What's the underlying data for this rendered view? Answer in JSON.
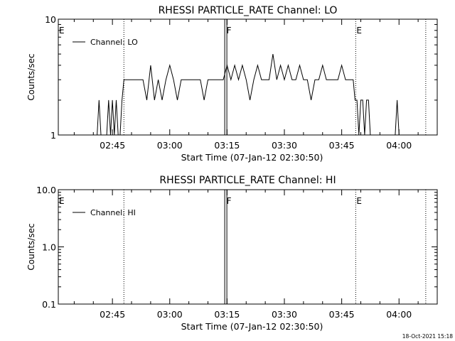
{
  "footer": {
    "date_stamp": "18-Oct-2021 15:18"
  },
  "chart_data": [
    {
      "type": "line",
      "title": "RHESSI PARTICLE_RATE Channel: LO",
      "xlabel": "Start Time (07-Jan-12 02:30:50)",
      "ylabel": "Counts/sec",
      "yscale": "log",
      "ylim": [
        1,
        10
      ],
      "ytick_labels": [
        "1",
        "10"
      ],
      "xlim": [
        "02:30:50",
        "04:10:00"
      ],
      "xtick_labels": [
        "02:45",
        "03:00",
        "03:15",
        "03:30",
        "03:45",
        "04:00"
      ],
      "legend": {
        "entries": [
          "Channel: LO"
        ],
        "placement": "top-left"
      },
      "markers": [
        {
          "label": "E",
          "time": "02:30:50",
          "style": "none"
        },
        {
          "label": "",
          "time": "02:48:00",
          "style": "dotted"
        },
        {
          "label": "F",
          "time": "03:14:40",
          "style": "double-solid"
        },
        {
          "label": "E",
          "time": "03:48:40",
          "style": "dotted"
        },
        {
          "label": "",
          "time": "04:07:00",
          "style": "dotted"
        }
      ],
      "series": [
        {
          "name": "Channel: LO",
          "x": [
            "02:41:00",
            "02:41:30",
            "02:42:00",
            "02:43:30",
            "02:44:00",
            "02:44:30",
            "02:45:00",
            "02:45:30",
            "02:46:00",
            "02:46:30",
            "02:47:00",
            "02:47:30",
            "02:48:00",
            "02:49:00",
            "02:50:00",
            "02:51:00",
            "02:52:00",
            "02:53:00",
            "02:54:00",
            "02:55:00",
            "02:56:00",
            "02:57:00",
            "02:58:00",
            "02:59:00",
            "03:00:00",
            "03:01:00",
            "03:02:00",
            "03:03:00",
            "03:04:00",
            "03:05:00",
            "03:06:00",
            "03:07:00",
            "03:08:00",
            "03:09:00",
            "03:10:00",
            "03:11:00",
            "03:12:00",
            "03:13:00",
            "03:14:00",
            "03:15:00",
            "03:16:00",
            "03:17:00",
            "03:18:00",
            "03:19:00",
            "03:20:00",
            "03:21:00",
            "03:22:00",
            "03:23:00",
            "03:24:00",
            "03:25:00",
            "03:26:00",
            "03:27:00",
            "03:28:00",
            "03:29:00",
            "03:30:00",
            "03:31:00",
            "03:32:00",
            "03:33:00",
            "03:34:00",
            "03:35:00",
            "03:36:00",
            "03:37:00",
            "03:38:00",
            "03:39:00",
            "03:40:00",
            "03:41:00",
            "03:42:00",
            "03:43:00",
            "03:44:00",
            "03:45:00",
            "03:46:00",
            "03:47:00",
            "03:48:00",
            "03:48:30",
            "03:49:00",
            "03:49:30",
            "03:50:00",
            "03:50:30",
            "03:51:00",
            "03:51:30",
            "03:52:00",
            "03:52:30",
            "03:53:00",
            "03:53:30",
            "03:54:00",
            "03:59:00",
            "03:59:30",
            "04:00:00"
          ],
          "y": [
            1,
            2,
            1,
            1,
            2,
            1,
            2,
            1,
            2,
            1,
            1,
            2,
            3,
            3,
            3,
            3,
            3,
            3,
            2,
            4,
            2,
            3,
            2,
            3,
            4,
            3,
            2,
            3,
            3,
            3,
            3,
            3,
            3,
            2,
            3,
            3,
            3,
            3,
            3,
            4,
            3,
            4,
            3,
            4,
            3,
            2,
            3,
            4,
            3,
            3,
            3,
            5,
            3,
            4,
            3,
            4,
            3,
            3,
            4,
            3,
            3,
            2,
            3,
            3,
            4,
            3,
            3,
            3,
            3,
            4,
            3,
            3,
            3,
            2,
            2,
            1,
            2,
            2,
            1,
            2,
            2,
            1,
            1,
            1,
            1,
            1,
            2,
            1
          ]
        }
      ]
    },
    {
      "type": "line",
      "title": "RHESSI PARTICLE_RATE Channel: HI",
      "xlabel": "Start Time (07-Jan-12 02:30:50)",
      "ylabel": "Counts/sec",
      "yscale": "log",
      "ylim": [
        0.1,
        10
      ],
      "ytick_labels": [
        "0.1",
        "1.0",
        "10.0"
      ],
      "xlim": [
        "02:30:50",
        "04:10:00"
      ],
      "xtick_labels": [
        "02:45",
        "03:00",
        "03:15",
        "03:30",
        "03:45",
        "04:00"
      ],
      "legend": {
        "entries": [
          "Channel: HI"
        ],
        "placement": "top-left"
      },
      "markers": [
        {
          "label": "E",
          "time": "02:30:50",
          "style": "none"
        },
        {
          "label": "",
          "time": "02:48:00",
          "style": "dotted"
        },
        {
          "label": "F",
          "time": "03:14:40",
          "style": "double-solid"
        },
        {
          "label": "E",
          "time": "03:48:40",
          "style": "dotted"
        },
        {
          "label": "",
          "time": "04:07:00",
          "style": "dotted"
        }
      ],
      "series": [
        {
          "name": "Channel: HI",
          "x": [],
          "y": []
        }
      ]
    }
  ]
}
